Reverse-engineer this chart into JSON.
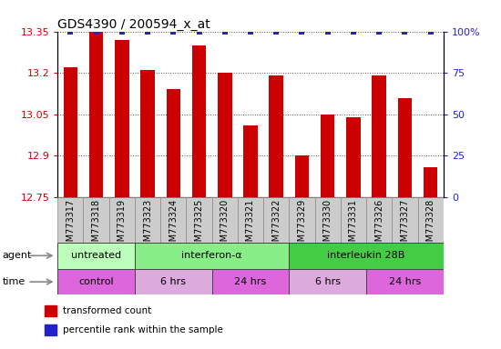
{
  "title": "GDS4390 / 200594_x_at",
  "samples": [
    "GSM773317",
    "GSM773318",
    "GSM773319",
    "GSM773323",
    "GSM773324",
    "GSM773325",
    "GSM773320",
    "GSM773321",
    "GSM773322",
    "GSM773329",
    "GSM773330",
    "GSM773331",
    "GSM773326",
    "GSM773327",
    "GSM773328"
  ],
  "values": [
    13.22,
    13.35,
    13.32,
    13.21,
    13.14,
    13.3,
    13.2,
    13.01,
    13.19,
    12.9,
    13.05,
    13.04,
    13.19,
    13.11,
    12.86
  ],
  "ylim_left": [
    12.75,
    13.35
  ],
  "ylim_right": [
    0,
    100
  ],
  "yticks_left": [
    12.75,
    12.9,
    13.05,
    13.2,
    13.35
  ],
  "yticks_right": [
    0,
    25,
    50,
    75,
    100
  ],
  "bar_color": "#cc0000",
  "dot_color": "#2222cc",
  "agent_groups": [
    {
      "label": "untreated",
      "start": 0,
      "end": 3,
      "color": "#bbffbb"
    },
    {
      "label": "interferon-α",
      "start": 3,
      "end": 9,
      "color": "#88ee88"
    },
    {
      "label": "interleukin 28B",
      "start": 9,
      "end": 15,
      "color": "#44cc44"
    }
  ],
  "time_groups": [
    {
      "label": "control",
      "start": 0,
      "end": 3,
      "color": "#dd66dd"
    },
    {
      "label": "6 hrs",
      "start": 3,
      "end": 6,
      "color": "#ddaadd"
    },
    {
      "label": "24 hrs",
      "start": 6,
      "end": 9,
      "color": "#dd66dd"
    },
    {
      "label": "6 hrs",
      "start": 9,
      "end": 12,
      "color": "#ddaadd"
    },
    {
      "label": "24 hrs",
      "start": 12,
      "end": 15,
      "color": "#dd66dd"
    }
  ],
  "legend_items": [
    {
      "label": "transformed count",
      "color": "#cc0000"
    },
    {
      "label": "percentile rank within the sample",
      "color": "#2222cc"
    }
  ],
  "bar_width": 0.55,
  "grid_color": "#555555",
  "bg_color": "#ffffff",
  "tick_fontsize": 7,
  "ytick_fontsize": 8,
  "axis_color_left": "#cc0000",
  "axis_color_right": "#2222cc",
  "xticklabel_bg": "#cccccc",
  "agent_fontsize": 8,
  "time_fontsize": 8
}
